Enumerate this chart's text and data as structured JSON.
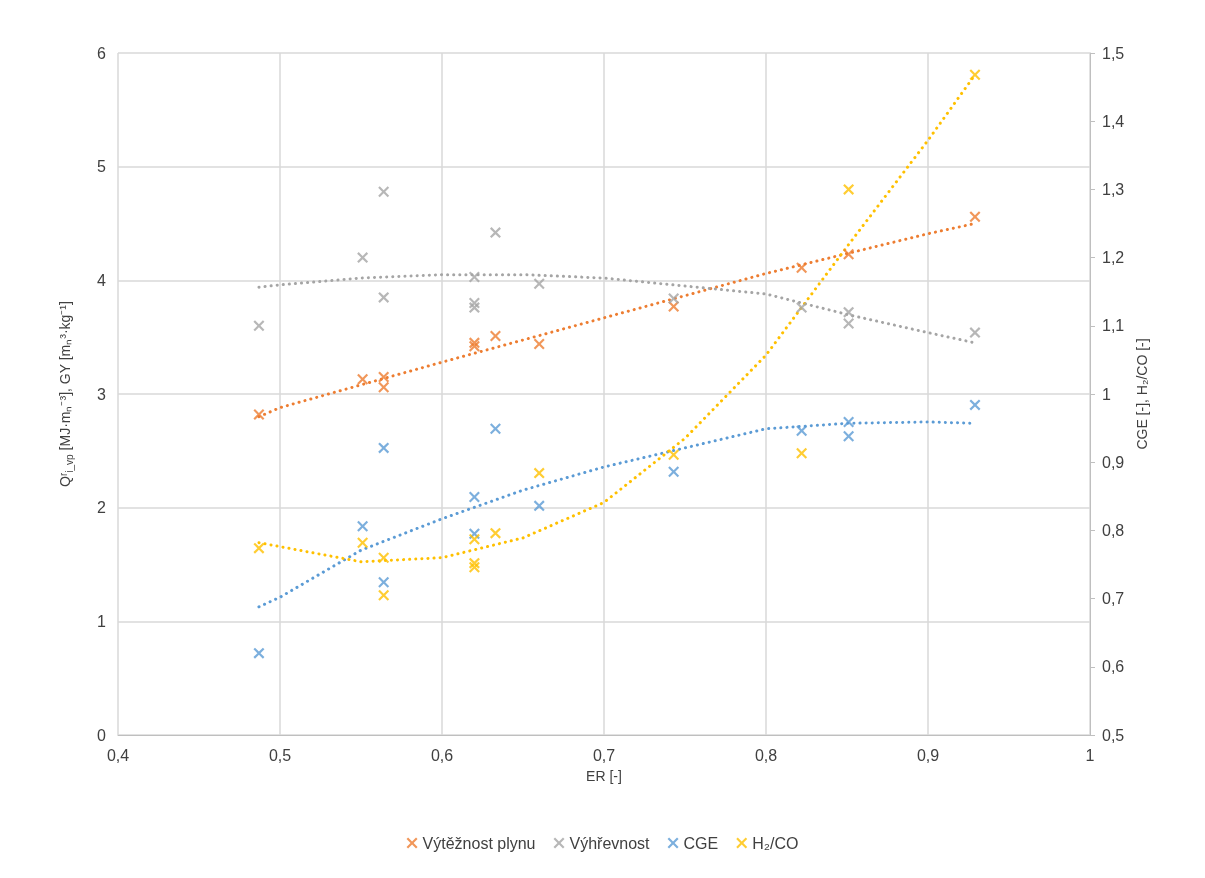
{
  "chart_data": {
    "type": "scatter",
    "xlabel": "ER [-]",
    "ylabel": "Qʳ$_{i_vp}$ [MJ·mₙ⁻³], GY [mₙ³·kg⁻¹]",
    "y2label": "CGE [-], H₂/CO [-]",
    "xlim": [
      0.4,
      1
    ],
    "xticks": [
      {
        "value": 0.4,
        "label": "0,4"
      },
      {
        "value": 0.5,
        "label": "0,5"
      },
      {
        "value": 0.6,
        "label": "0,6"
      },
      {
        "value": 0.7,
        "label": "0,7"
      },
      {
        "value": 0.8,
        "label": "0,8"
      },
      {
        "value": 0.9,
        "label": "0,9"
      },
      1
    ],
    "ylim": [
      0,
      6
    ],
    "yticks": [
      0,
      1,
      2,
      3,
      4,
      5,
      6
    ],
    "y2lim": [
      0.5,
      1.5
    ],
    "y2ticks": [
      {
        "value": 0.5,
        "label": "0,5"
      },
      {
        "value": 0.6,
        "label": "0,6"
      },
      {
        "value": 0.7,
        "label": "0,7"
      },
      {
        "value": 0.8,
        "label": "0,8"
      },
      {
        "value": 0.9,
        "label": "0,9"
      },
      1,
      {
        "value": 1.1,
        "label": "1,1"
      },
      {
        "value": 1.2,
        "label": "1,2"
      },
      {
        "value": 1.3,
        "label": "1,3"
      },
      {
        "value": 1.4,
        "label": "1,4"
      },
      {
        "value": 1.5,
        "label": "1,5"
      }
    ],
    "grid": true,
    "legend": "bottom",
    "marker": "cross",
    "series": [
      {
        "name": "Výtěžnost plynu",
        "color": "#ed7d31",
        "x": [
          0.487,
          0.551,
          0.564,
          0.564,
          0.62,
          0.62,
          0.633,
          0.66,
          0.743,
          0.822,
          0.851,
          0.929
        ],
        "values": [
          2.82,
          3.13,
          3.15,
          3.06,
          3.45,
          3.42,
          3.51,
          3.44,
          3.77,
          4.11,
          4.23,
          4.56
        ]
      },
      {
        "name": "Výhřevnost",
        "color": "#a5a5a5",
        "x": [
          0.487,
          0.551,
          0.564,
          0.564,
          0.62,
          0.62,
          0.62,
          0.633,
          0.66,
          0.743,
          0.822,
          0.851,
          0.851,
          0.929
        ],
        "values": [
          3.6,
          4.2,
          4.78,
          3.85,
          4.03,
          3.8,
          3.76,
          4.42,
          3.97,
          3.84,
          3.76,
          3.72,
          3.62,
          3.54
        ]
      },
      {
        "name": "CGE",
        "axis": "y2",
        "color": "#5b9bd5",
        "x": [
          0.487,
          0.551,
          0.564,
          0.564,
          0.62,
          0.62,
          0.633,
          0.66,
          0.743,
          0.822,
          0.851,
          0.851,
          0.929
        ],
        "values": [
          0.62,
          0.806,
          0.921,
          0.724,
          0.849,
          0.795,
          0.949,
          0.836,
          0.886,
          0.946,
          0.959,
          0.938,
          0.984
        ]
      },
      {
        "name": "H₂/CO",
        "axis": "y2",
        "color": "#ffc000",
        "x": [
          0.487,
          0.551,
          0.564,
          0.564,
          0.62,
          0.62,
          0.62,
          0.633,
          0.66,
          0.743,
          0.822,
          0.851,
          0.929
        ],
        "values": [
          0.774,
          0.782,
          0.76,
          0.705,
          0.787,
          0.752,
          0.746,
          0.796,
          0.884,
          0.911,
          0.913,
          1.3,
          1.468
        ]
      },
      {
        "type": "line",
        "marker": "none",
        "line_style": "dotted",
        "color": "#ed7d31",
        "x": [
          0.487,
          0.5,
          0.6,
          0.7,
          0.8,
          0.9,
          0.929
        ],
        "values": [
          2.8,
          2.88,
          3.28,
          3.67,
          4.06,
          4.41,
          4.5
        ]
      },
      {
        "type": "line",
        "marker": "none",
        "line_style": "dotted",
        "color": "#a5a5a5",
        "x": [
          0.487,
          0.5,
          0.55,
          0.6,
          0.65,
          0.7,
          0.75,
          0.8,
          0.85,
          0.9,
          0.929
        ],
        "values": [
          3.94,
          3.96,
          4.02,
          4.05,
          4.05,
          4.02,
          3.95,
          3.88,
          3.7,
          3.54,
          3.45
        ]
      },
      {
        "type": "line",
        "marker": "none",
        "line_style": "dotted",
        "axis": "y2",
        "color": "#5b9bd5",
        "x": [
          0.487,
          0.5,
          0.55,
          0.6,
          0.65,
          0.7,
          0.75,
          0.8,
          0.85,
          0.9,
          0.929
        ],
        "values": [
          0.688,
          0.702,
          0.771,
          0.817,
          0.859,
          0.893,
          0.921,
          0.949,
          0.957,
          0.959,
          0.957
        ]
      },
      {
        "type": "line",
        "marker": "none",
        "line_style": "dotted",
        "axis": "y2",
        "color": "#ffc000",
        "x": [
          0.487,
          0.55,
          0.6,
          0.65,
          0.7,
          0.75,
          0.8,
          0.85,
          0.9,
          0.929
        ],
        "values": [
          0.782,
          0.754,
          0.76,
          0.789,
          0.841,
          0.935,
          1.057,
          1.216,
          1.372,
          1.468
        ]
      }
    ]
  }
}
